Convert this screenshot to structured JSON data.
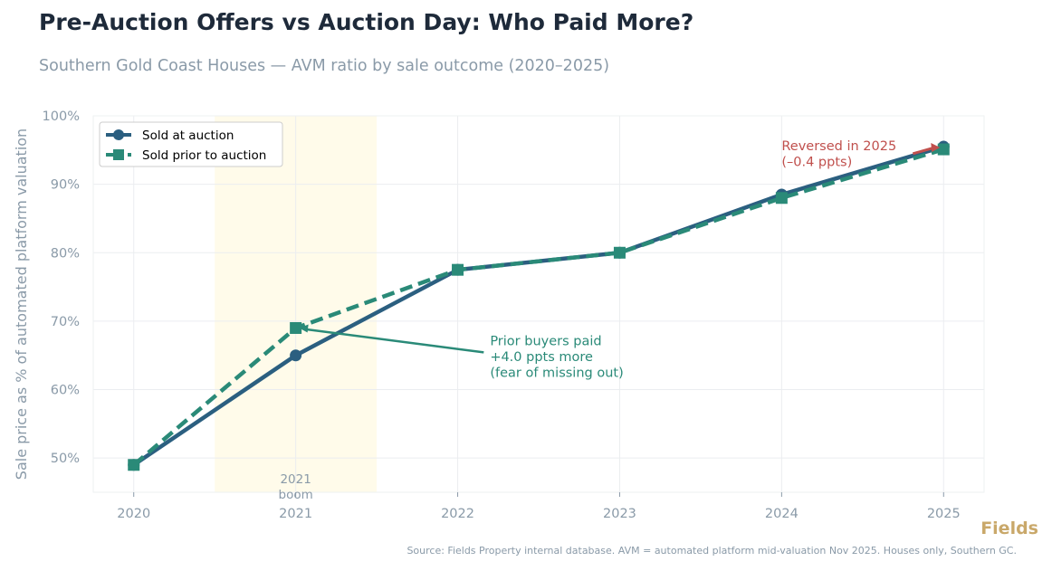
{
  "title": "Pre-Auction Offers vs Auction Day: Who Paid More?",
  "subtitle": "Southern Gold Coast Houses — AVM ratio by sale outcome (2020–2025)",
  "brand": "Fields",
  "source": "Source: Fields Property internal database. AVM = automated platform mid-valuation Nov 2025. Houses only, Southern GC.",
  "chart_data": {
    "type": "line",
    "title": "Pre-Auction Offers vs Auction Day: Who Paid More?",
    "xlabel": "",
    "ylabel": "Sale price as % of automated platform valuation",
    "x": [
      2020,
      2021,
      2022,
      2023,
      2024,
      2025
    ],
    "xlim": [
      2019.75,
      2025.25
    ],
    "ylim": [
      45,
      100
    ],
    "yticks": [
      50,
      60,
      70,
      80,
      90,
      100
    ],
    "ytick_labels": [
      "50%",
      "60%",
      "70%",
      "80%",
      "90%",
      "100%"
    ],
    "xtick_labels": [
      "2020",
      "2021",
      "2022",
      "2023",
      "2024",
      "2025"
    ],
    "grid": true,
    "legend_position": "top-left",
    "series": [
      {
        "name": "Sold at auction",
        "values": [
          49,
          65,
          77.5,
          80,
          88.5,
          95.5
        ],
        "color": "#2b5f80",
        "style": "solid",
        "marker": "circle"
      },
      {
        "name": "Sold prior to auction",
        "values": [
          49,
          69,
          77.5,
          80,
          88,
          95.1
        ],
        "color": "#2a8a78",
        "style": "dashed",
        "marker": "square"
      }
    ],
    "shaded_region": {
      "x": [
        2020.5,
        2021.5
      ],
      "label_line1": "2021",
      "label_line2": "boom",
      "color": "#fffbea"
    },
    "annotations": [
      {
        "lines": [
          "Prior buyers paid",
          "+4.0 ppts more",
          "(fear of missing out)"
        ],
        "point": [
          2021,
          69
        ],
        "text_at": [
          2022.2,
          66.5
        ],
        "color": "#2a8a78"
      },
      {
        "lines": [
          "Reversed in 2025",
          "(–0.4 ppts)"
        ],
        "point": [
          2025,
          95.1
        ],
        "text_at": [
          2024,
          95
        ],
        "color": "#c0504d"
      }
    ]
  }
}
